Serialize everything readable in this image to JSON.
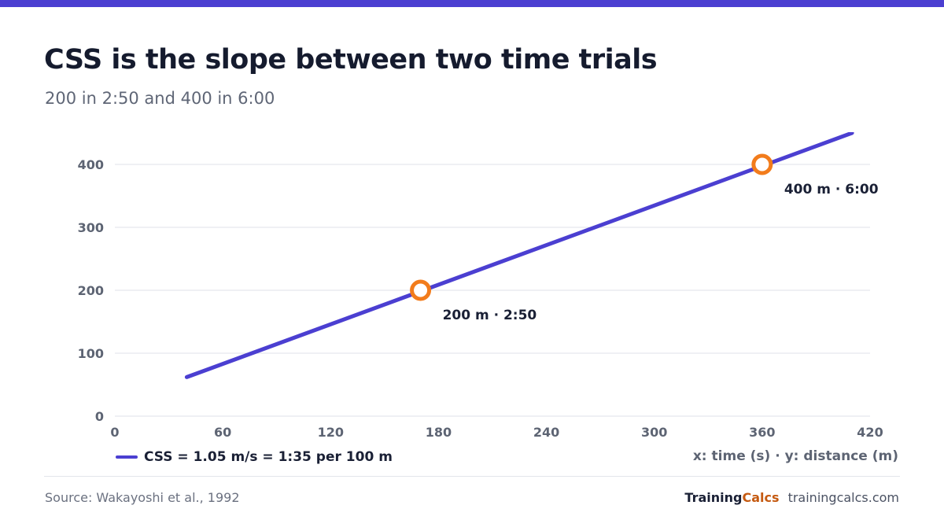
{
  "colors": {
    "accent": "#4b3fd1",
    "marker": "#f27c1c",
    "grid": "#dfe2ea",
    "text": "#1a2035",
    "muted": "#5d6473"
  },
  "chart_data": {
    "type": "line",
    "title": "CSS is the slope between two time trials",
    "subtitle": "200 in 2:50 and 400 in 6:00",
    "xlabel": "",
    "ylabel": "",
    "axis_note": "x: time (s) · y: distance (m)",
    "xlim": [
      0,
      420
    ],
    "ylim": [
      0,
      400
    ],
    "x_ticks": [
      0,
      60,
      120,
      180,
      240,
      300,
      360,
      420
    ],
    "y_ticks": [
      0,
      100,
      200,
      300,
      400
    ],
    "grid": "horizontal",
    "legend_position": "bottom-left",
    "series": [
      {
        "name": "CSS = 1.05 m/s = 1:35 per 100 m",
        "color": "#4b3fd1",
        "points": [
          [
            40,
            62
          ],
          [
            410,
            450
          ]
        ]
      }
    ],
    "markers": [
      {
        "x": 170,
        "y": 200,
        "label": "200 m · 2:50"
      },
      {
        "x": 360,
        "y": 400,
        "label": "400 m · 6:00"
      }
    ]
  },
  "footer": {
    "source": "Source: Wakayoshi et al., 1992",
    "brand_training": "Training",
    "brand_calcs": "Calcs",
    "brand_url": "trainingcalcs.com"
  }
}
